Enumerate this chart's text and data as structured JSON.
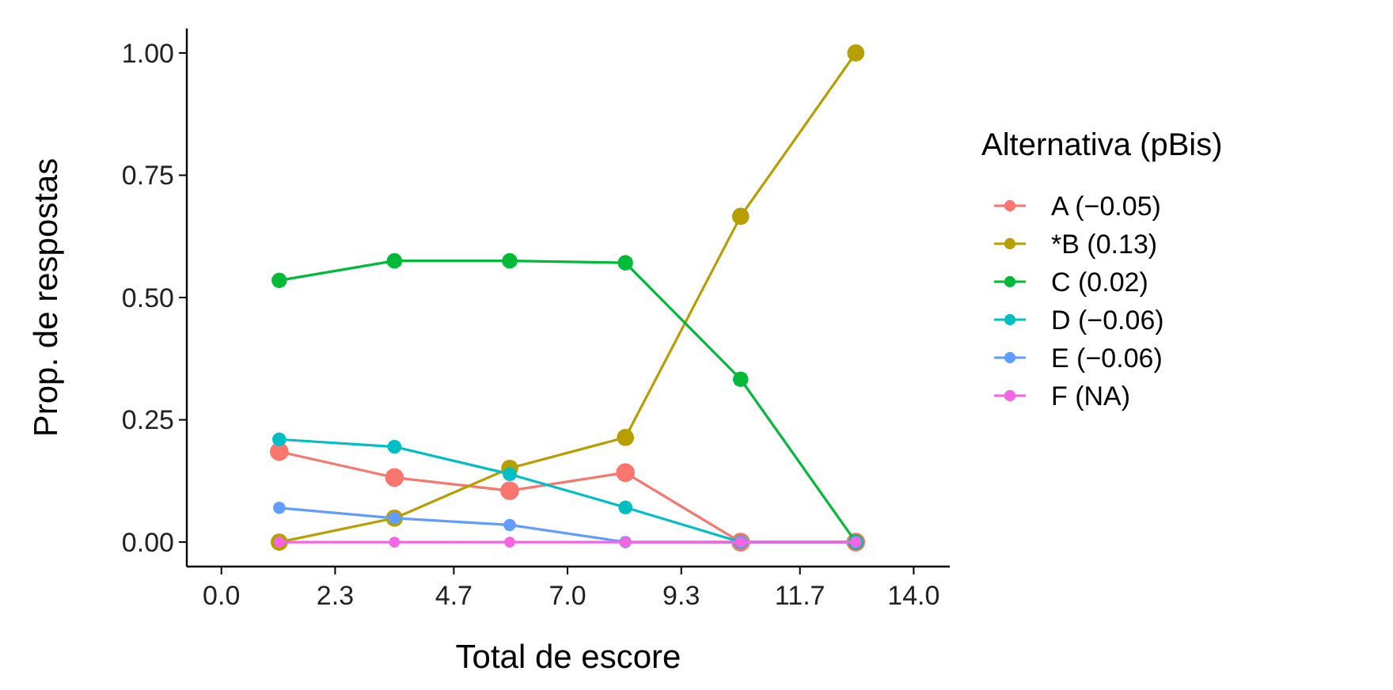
{
  "chart_data": {
    "type": "line",
    "xlabel": "Total de escore",
    "ylabel": "Prop. de respostas",
    "legend_title": "Alternativa (pBis)",
    "legend": "right",
    "marker": "circle",
    "grid": false,
    "x": [
      1.17,
      3.5,
      5.83,
      8.17,
      10.5,
      12.83
    ],
    "xlim": [
      -0.7,
      14.73
    ],
    "xticks": [
      {
        "value": 0,
        "label": "0.0"
      },
      2.3,
      4.7,
      {
        "value": 7,
        "label": "7.0"
      },
      9.3,
      11.7,
      {
        "value": 14,
        "label": "14.0"
      }
    ],
    "ylim": [
      -0.05,
      1.05
    ],
    "yticks": [
      {
        "value": 0,
        "label": "0.00"
      },
      0.25,
      {
        "value": 0.5,
        "label": "0.50"
      },
      0.75,
      {
        "value": 1,
        "label": "1.00"
      }
    ],
    "series": [
      {
        "name": "A (−0.05)",
        "color": "#f8766d",
        "values": [
          0.185,
          0.132,
          0.105,
          0.142,
          0,
          0
        ]
      },
      {
        "name": "*B (0.13)",
        "color": "#b79f00",
        "values": [
          0,
          0.049,
          0.151,
          0.214,
          0.666,
          1
        ]
      },
      {
        "name": "C (0.02)",
        "color": "#00ba38",
        "values": [
          0.535,
          0.575,
          0.575,
          0.571,
          0.333,
          0
        ]
      },
      {
        "name": "D (−0.06)",
        "color": "#00bfc4",
        "values": [
          0.21,
          0.195,
          0.139,
          0.071,
          0,
          0
        ]
      },
      {
        "name": "E (−0.06)",
        "color": "#619cff",
        "values": [
          0.07,
          0.049,
          0.035,
          0,
          0,
          0
        ]
      },
      {
        "name": "F (NA)",
        "color": "#f564e3",
        "values": [
          0,
          0,
          0,
          0,
          0,
          0
        ]
      }
    ]
  }
}
